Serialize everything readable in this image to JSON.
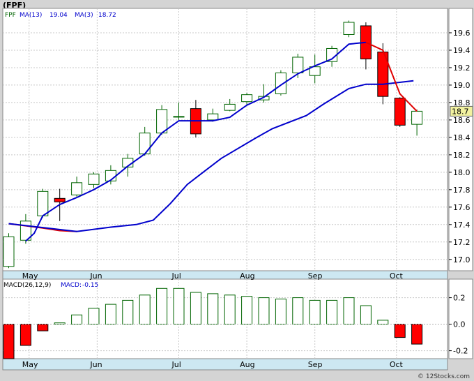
{
  "title": "(FPF)",
  "credit": "© 12Stocks.com",
  "colors": {
    "up": "#006400",
    "down": "#ff0000",
    "ma13": "#0000cc",
    "ma3": "#e00000",
    "macd_bar": "#006400",
    "macd_neg": "#ff0000"
  },
  "chart_data": [
    {
      "type": "candlestick",
      "ticker": "FPF",
      "legend": {
        "ticker": "FPF",
        "ma13_label": "MA(13)",
        "ma13_value": "19.04",
        "ma3_label": "MA(3)",
        "ma3_value": "18.72"
      },
      "last_price_label": "18.7",
      "ylim": [
        16.87,
        19.88
      ],
      "yticks": [
        "17.0",
        "17.2",
        "17.4",
        "17.6",
        "17.8",
        "18.0",
        "18.2",
        "18.4",
        "18.6",
        "18.8",
        "19.0",
        "19.2",
        "19.4",
        "19.6"
      ],
      "xticks": [
        "May",
        "Jun",
        "Jul",
        "Aug",
        "Sep",
        "Oct"
      ],
      "xtick_index": [
        1.2,
        5.2,
        10.0,
        14.0,
        18.0,
        22.8
      ],
      "candles": [
        {
          "o": 16.92,
          "h": 17.3,
          "l": 16.9,
          "c": 17.26
        },
        {
          "o": 17.22,
          "h": 17.52,
          "l": 17.18,
          "c": 17.44
        },
        {
          "o": 17.5,
          "h": 17.81,
          "l": 17.48,
          "c": 17.78
        },
        {
          "o": 17.7,
          "h": 17.81,
          "l": 17.44,
          "c": 17.66
        },
        {
          "o": 17.74,
          "h": 17.95,
          "l": 17.72,
          "c": 17.88
        },
        {
          "o": 17.86,
          "h": 18.0,
          "l": 17.82,
          "c": 17.98
        },
        {
          "o": 17.9,
          "h": 18.08,
          "l": 17.86,
          "c": 18.02
        },
        {
          "o": 18.06,
          "h": 18.21,
          "l": 17.95,
          "c": 18.16
        },
        {
          "o": 18.21,
          "h": 18.52,
          "l": 18.19,
          "c": 18.45
        },
        {
          "o": 18.45,
          "h": 18.77,
          "l": 18.43,
          "c": 18.72
        },
        {
          "o": 18.64,
          "h": 18.8,
          "l": 18.6,
          "c": 18.64
        },
        {
          "o": 18.73,
          "h": 18.83,
          "l": 18.4,
          "c": 18.44
        },
        {
          "o": 18.6,
          "h": 18.73,
          "l": 18.58,
          "c": 18.67
        },
        {
          "o": 18.71,
          "h": 18.84,
          "l": 18.7,
          "c": 18.78
        },
        {
          "o": 18.81,
          "h": 18.91,
          "l": 18.77,
          "c": 18.89
        },
        {
          "o": 18.83,
          "h": 19.01,
          "l": 18.8,
          "c": 18.87
        },
        {
          "o": 18.9,
          "h": 19.17,
          "l": 18.88,
          "c": 19.14
        },
        {
          "o": 19.14,
          "h": 19.36,
          "l": 19.08,
          "c": 19.32
        },
        {
          "o": 19.11,
          "h": 19.35,
          "l": 19.02,
          "c": 19.21
        },
        {
          "o": 19.27,
          "h": 19.45,
          "l": 19.21,
          "c": 19.42
        },
        {
          "o": 19.58,
          "h": 19.74,
          "l": 19.55,
          "c": 19.72
        },
        {
          "o": 19.68,
          "h": 19.72,
          "l": 19.18,
          "c": 19.3
        },
        {
          "o": 19.38,
          "h": 19.48,
          "l": 18.78,
          "c": 18.87
        },
        {
          "o": 18.85,
          "h": 18.86,
          "l": 18.52,
          "c": 18.54
        },
        {
          "o": 18.55,
          "h": 18.72,
          "l": 18.42,
          "c": 18.7
        }
      ],
      "ma13": [
        {
          "i": 0,
          "v": 17.41
        },
        {
          "i": 4,
          "v": 17.32
        },
        {
          "i": 6,
          "v": 17.37
        },
        {
          "i": 7.5,
          "v": 17.4
        },
        {
          "i": 8.5,
          "v": 17.45
        },
        {
          "i": 9.5,
          "v": 17.64
        },
        {
          "i": 10.5,
          "v": 17.86
        },
        {
          "i": 11.5,
          "v": 18.01
        },
        {
          "i": 12.5,
          "v": 18.16
        },
        {
          "i": 14.5,
          "v": 18.39
        },
        {
          "i": 15.5,
          "v": 18.5
        },
        {
          "i": 17.5,
          "v": 18.65
        },
        {
          "i": 18.5,
          "v": 18.78
        },
        {
          "i": 20,
          "v": 18.96
        },
        {
          "i": 21,
          "v": 19.01
        },
        {
          "i": 22,
          "v": 19.01
        },
        {
          "i": 23.8,
          "v": 19.05
        }
      ],
      "ma3": [
        {
          "i": 0,
          "v": 17.41
        },
        {
          "i": 2,
          "v": 17.36
        },
        {
          "i": 3,
          "v": 17.33
        },
        {
          "i": 4,
          "v": 17.32
        }
      ],
      "ma_blue_recent": [
        {
          "i": 1,
          "v": 17.21
        },
        {
          "i": 1.5,
          "v": 17.3
        },
        {
          "i": 2,
          "v": 17.5
        },
        {
          "i": 3,
          "v": 17.63
        },
        {
          "i": 4,
          "v": 17.71
        },
        {
          "i": 5,
          "v": 17.8
        },
        {
          "i": 6,
          "v": 17.91
        },
        {
          "i": 7,
          "v": 18.07
        },
        {
          "i": 8,
          "v": 18.21
        },
        {
          "i": 9,
          "v": 18.45
        },
        {
          "i": 10,
          "v": 18.59
        },
        {
          "i": 11,
          "v": 18.59
        },
        {
          "i": 12,
          "v": 18.59
        },
        {
          "i": 13,
          "v": 18.63
        },
        {
          "i": 14,
          "v": 18.77
        },
        {
          "i": 15,
          "v": 18.86
        },
        {
          "i": 16,
          "v": 19.0
        },
        {
          "i": 17,
          "v": 19.13
        },
        {
          "i": 18,
          "v": 19.22
        },
        {
          "i": 19,
          "v": 19.3
        },
        {
          "i": 20,
          "v": 19.47
        },
        {
          "i": 21,
          "v": 19.49
        }
      ],
      "ma_red_recent": [
        {
          "i": 21,
          "v": 19.49
        },
        {
          "i": 22,
          "v": 19.4
        },
        {
          "i": 23,
          "v": 18.9
        },
        {
          "i": 24,
          "v": 18.7
        }
      ]
    },
    {
      "type": "bar",
      "legend": {
        "label": "MACD(26,12,9)",
        "macd_label": "MACD:",
        "macd_value": "-0.15"
      },
      "ylim": [
        -0.26,
        0.34
      ],
      "yticks": [
        "0.2",
        "0.0",
        "-0.2"
      ],
      "values": [
        -0.26,
        -0.16,
        -0.05,
        0.01,
        0.07,
        0.12,
        0.15,
        0.18,
        0.22,
        0.27,
        0.27,
        0.24,
        0.23,
        0.22,
        0.21,
        0.2,
        0.19,
        0.2,
        0.18,
        0.18,
        0.2,
        0.14,
        0.03,
        -0.1,
        -0.15
      ]
    }
  ]
}
